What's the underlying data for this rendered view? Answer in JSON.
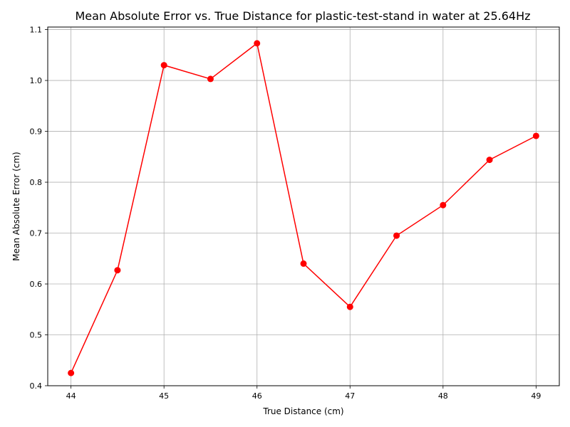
{
  "chart_data": {
    "type": "line",
    "title": "Mean Absolute Error vs. True Distance for plastic-test-stand in water at 25.64Hz",
    "xlabel": "True Distance (cm)",
    "ylabel": "Mean Absolute Error (cm)",
    "xlim": [
      43.75,
      49.25
    ],
    "ylim": [
      0.4,
      1.105
    ],
    "xticks": [
      44,
      45,
      46,
      47,
      48,
      49
    ],
    "yticks": [
      0.4,
      0.5,
      0.6,
      0.7,
      0.8,
      0.9,
      1.0,
      1.1
    ],
    "ytick_labels": [
      "0.4",
      "0.5",
      "0.6",
      "0.7",
      "0.8",
      "0.9",
      "1.0",
      "1.1"
    ],
    "grid": true,
    "series": [
      {
        "color": "#ff0000",
        "marker": "circle",
        "x": [
          44,
          44.5,
          45,
          45.5,
          46,
          46.5,
          47,
          47.5,
          48,
          48.5,
          49
        ],
        "y": [
          0.425,
          0.627,
          1.03,
          1.003,
          1.073,
          0.64,
          0.555,
          0.695,
          0.755,
          0.844,
          0.891
        ]
      }
    ]
  }
}
